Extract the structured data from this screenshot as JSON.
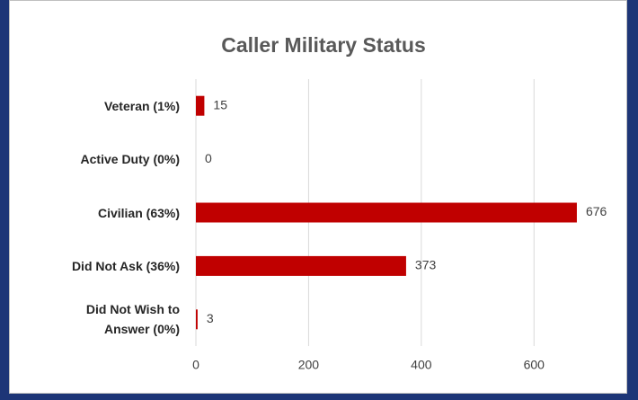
{
  "chart_data": {
    "type": "bar",
    "orientation": "horizontal",
    "title": "Caller Military Status",
    "categories": [
      "Veteran  (1%)",
      "Active Duty  (0%)",
      "Civilian  (63%)",
      "Did Not Ask  (36%)",
      "Did Not Wish to Answer  (0%)"
    ],
    "values": [
      15,
      0,
      676,
      373,
      3
    ],
    "color": "#c00000",
    "xlim": [
      0,
      700
    ],
    "xticks": [
      0,
      200,
      400,
      600
    ],
    "grid": true
  }
}
